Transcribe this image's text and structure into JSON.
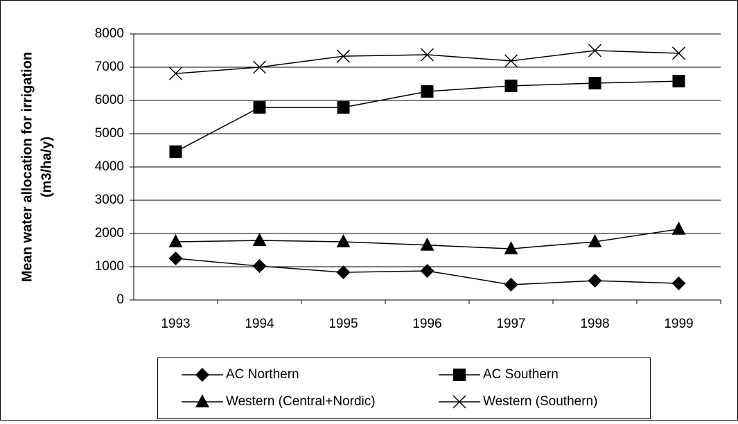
{
  "chart_data": {
    "type": "line",
    "ylabel": [
      "Mean water allocation for irrigation",
      "(m3/ha/y)"
    ],
    "categories": [
      "1993",
      "1994",
      "1995",
      "1996",
      "1997",
      "1998",
      "1999"
    ],
    "series": [
      {
        "name": "AC Northern",
        "color": "#000000",
        "marker": "diamond",
        "values": [
          1250,
          1020,
          830,
          875,
          460,
          580,
          500
        ]
      },
      {
        "name": "AC Southern",
        "color": "#000000",
        "marker": "square",
        "values": [
          4460,
          5790,
          5790,
          6270,
          6440,
          6520,
          6580
        ]
      },
      {
        "name": "Western (Central+Nordic)",
        "color": "#000000",
        "marker": "triangle",
        "values": [
          1750,
          1790,
          1750,
          1650,
          1540,
          1750,
          2130
        ]
      },
      {
        "name": "Western (Southern)",
        "color": "#000000",
        "marker": "x",
        "values": [
          6810,
          7000,
          7330,
          7375,
          7190,
          7500,
          7420
        ]
      }
    ],
    "ylim": [
      0,
      8000
    ],
    "yticks": [
      0,
      1000,
      2000,
      3000,
      4000,
      5000,
      6000,
      7000,
      8000
    ],
    "grid": true,
    "legend": "bottom"
  }
}
